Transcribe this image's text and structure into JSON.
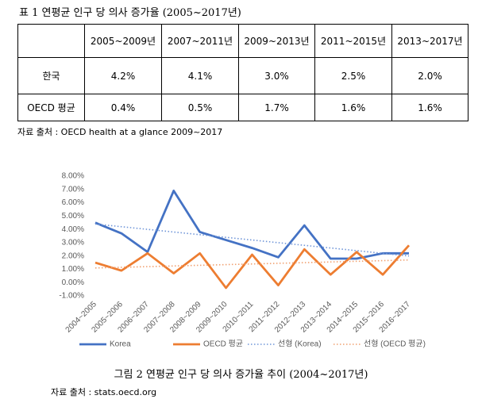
{
  "table_caption": "표 1 연평균 인구 당 의사 증가율 (2005~2017년)",
  "table": {
    "header": [
      "",
      "2005~2009년",
      "2007~2011년",
      "2009~2013년",
      "2011~2015년",
      "2013~2017년"
    ],
    "rows": [
      [
        "한국",
        "4.2%",
        "4.1%",
        "3.0%",
        "2.5%",
        "2.0%"
      ],
      [
        "OECD 평균",
        "0.4%",
        "0.5%",
        "1.7%",
        "1.6%",
        "1.6%"
      ]
    ]
  },
  "table_source": "자료 출처 : OECD health at a glance 2009~2017",
  "chart_data": {
    "type": "line",
    "categories": [
      "2004~2005",
      "2005~2006",
      "2006~2007",
      "2007~2008",
      "2008~2009",
      "2009~2010",
      "2010~2011",
      "2011~2012",
      "2012~2013",
      "2013~2014",
      "2014~2015",
      "2015~2016",
      "2016~2017"
    ],
    "series": [
      {
        "name": "Korea",
        "color": "#4472c4",
        "values": [
          4.5,
          3.7,
          2.3,
          6.9,
          3.8,
          3.2,
          2.6,
          1.9,
          4.3,
          1.8,
          1.8,
          2.2,
          2.2
        ]
      },
      {
        "name": "OECD 평균",
        "color": "#ed7d31",
        "values": [
          1.5,
          0.9,
          2.2,
          0.7,
          2.2,
          -0.4,
          2.1,
          -0.2,
          2.5,
          0.6,
          2.3,
          0.6,
          2.8
        ]
      },
      {
        "name": "선형 (Korea)",
        "color": "#6f95d8",
        "dashed": true,
        "values": [
          4.4,
          4.2,
          4.0,
          3.8,
          3.6,
          3.4,
          3.2,
          3.0,
          2.8,
          2.6,
          2.4,
          2.2,
          2.0
        ]
      },
      {
        "name": "선형 (OECD 평균)",
        "color": "#f0a070",
        "dashed": true,
        "values": [
          1.1,
          1.15,
          1.2,
          1.25,
          1.3,
          1.35,
          1.4,
          1.45,
          1.5,
          1.55,
          1.6,
          1.65,
          1.7
        ]
      }
    ],
    "ylim": [
      -1,
      8
    ],
    "yticks": [
      {
        "value": -1,
        "label": "-1.00%"
      },
      {
        "value": 0,
        "label": "0.00%"
      },
      {
        "value": 1,
        "label": "1.00%"
      },
      {
        "value": 2,
        "label": "2.00%"
      },
      {
        "value": 3,
        "label": "3.00%"
      },
      {
        "value": 4,
        "label": "4.00%"
      },
      {
        "value": 5,
        "label": "5.00%"
      },
      {
        "value": 6,
        "label": "6.00%"
      },
      {
        "value": 7,
        "label": "7.00%"
      },
      {
        "value": 8,
        "label": "8.00%"
      }
    ],
    "grid": false,
    "legend": "bottom"
  },
  "figure_caption": "그림 2 연평균 인구 당 의사 증가율 추이 (2004~2017년)",
  "figure_source": "자료 출처 : stats.oecd.org"
}
